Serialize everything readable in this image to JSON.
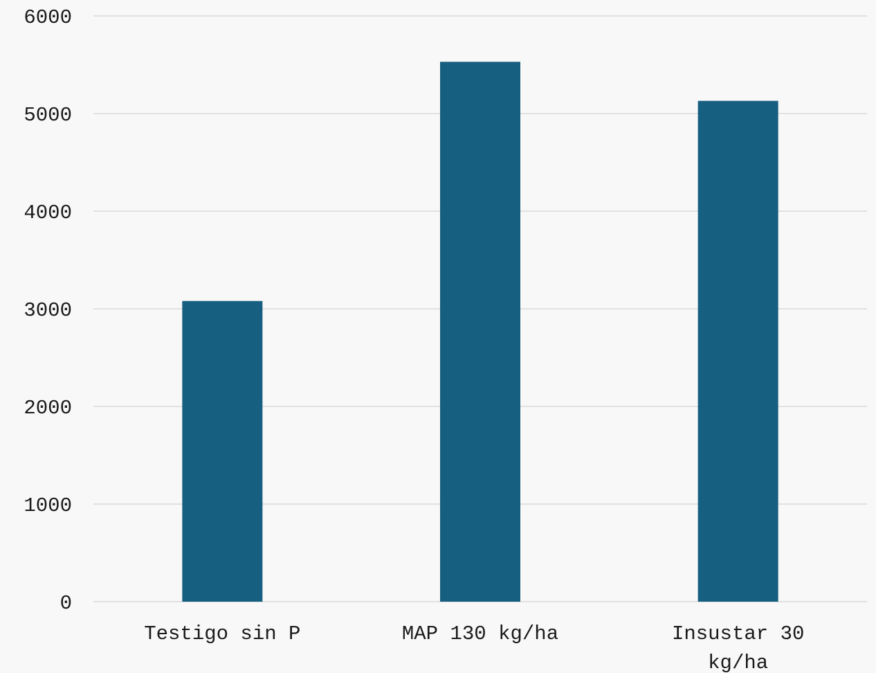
{
  "colors": {
    "bar": "#175f80",
    "grid": "#d9d9d9",
    "background": "#f8f8f8",
    "text": "#1a1a1a"
  },
  "chart_data": {
    "type": "bar",
    "title": "",
    "xlabel": "",
    "ylabel": "",
    "categories": [
      [
        "Testigo sin P"
      ],
      [
        "MAP 130 kg/ha"
      ],
      [
        "Insustar 30",
        "kg/ha"
      ]
    ],
    "values": [
      3080,
      5530,
      5130
    ],
    "ylim": [
      0,
      6000
    ],
    "yticks": [
      0,
      1000,
      2000,
      3000,
      4000,
      5000,
      6000
    ],
    "grid": true,
    "legend": "none"
  }
}
